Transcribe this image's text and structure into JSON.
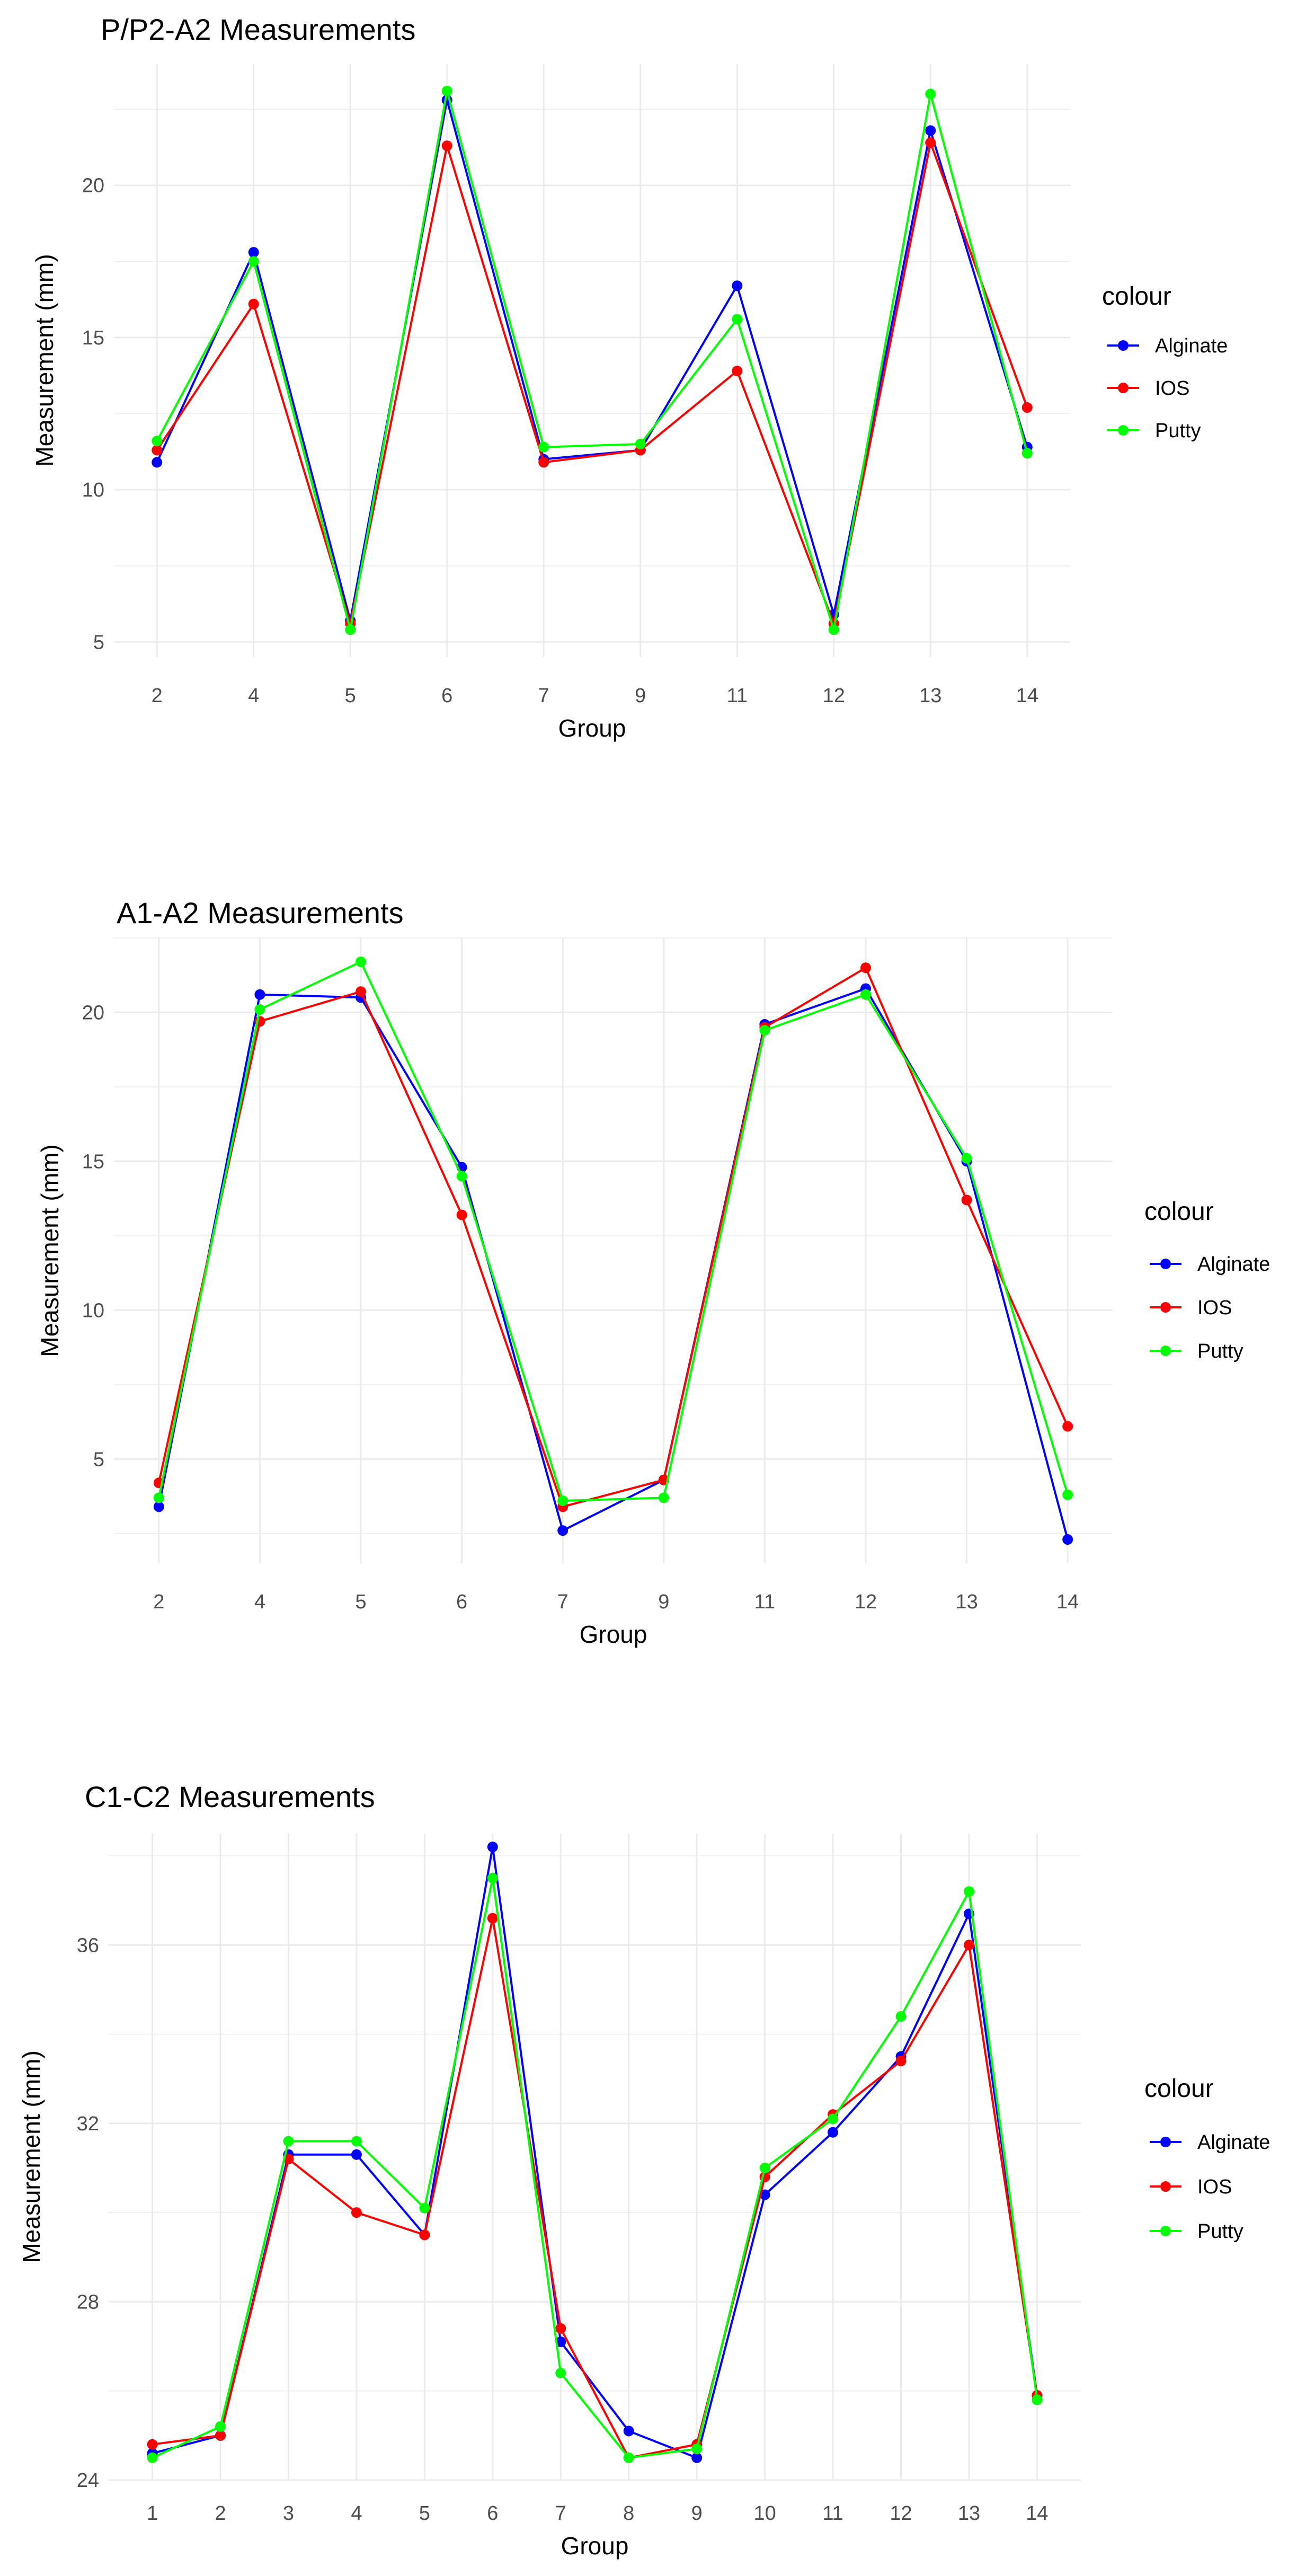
{
  "chart_data": [
    {
      "type": "line",
      "title": "P/P2-A2 Measurements",
      "xlabel": "Group",
      "ylabel": "Measurement (mm)",
      "categories": [
        "2",
        "4",
        "5",
        "6",
        "7",
        "9",
        "11",
        "12",
        "13",
        "14"
      ],
      "ylim": [
        4.5,
        24.0
      ],
      "yticks": [
        5,
        10,
        15,
        20
      ],
      "legend_title": "colour",
      "series": [
        {
          "name": "Alginate",
          "color": "#0000ff",
          "values": [
            10.9,
            17.8,
            5.7,
            22.8,
            11.0,
            11.3,
            16.7,
            5.9,
            21.8,
            11.4
          ]
        },
        {
          "name": "IOS",
          "color": "#ff0000",
          "values": [
            11.3,
            16.1,
            5.6,
            21.3,
            10.9,
            11.3,
            13.9,
            5.6,
            21.4,
            12.7
          ]
        },
        {
          "name": "Putty",
          "color": "#00ff00",
          "values": [
            11.6,
            17.5,
            5.4,
            23.1,
            11.4,
            11.5,
            15.6,
            5.4,
            23.0,
            11.2
          ]
        }
      ]
    },
    {
      "type": "line",
      "title": "A1-A2 Measurements",
      "xlabel": "Group",
      "ylabel": "Measurement (mm)",
      "categories": [
        "2",
        "4",
        "5",
        "6",
        "7",
        "9",
        "11",
        "12",
        "13",
        "14"
      ],
      "ylim": [
        1.5,
        22.5
      ],
      "yticks": [
        5,
        10,
        15,
        20
      ],
      "legend_title": "colour",
      "series": [
        {
          "name": "Alginate",
          "color": "#0000ff",
          "values": [
            3.4,
            20.6,
            20.5,
            14.8,
            2.6,
            4.3,
            19.6,
            20.8,
            15.0,
            2.3
          ]
        },
        {
          "name": "IOS",
          "color": "#ff0000",
          "values": [
            4.2,
            19.7,
            20.7,
            13.2,
            3.4,
            4.3,
            19.5,
            21.5,
            13.7,
            6.1
          ]
        },
        {
          "name": "Putty",
          "color": "#00ff00",
          "values": [
            3.7,
            20.1,
            21.7,
            14.5,
            3.6,
            3.7,
            19.4,
            20.6,
            15.1,
            3.8
          ]
        }
      ]
    },
    {
      "type": "line",
      "title": "C1-C2 Measurements",
      "xlabel": "Group",
      "ylabel": "Measurement (mm)",
      "categories": [
        "1",
        "2",
        "3",
        "4",
        "5",
        "6",
        "7",
        "8",
        "9",
        "10",
        "11",
        "12",
        "13",
        "14"
      ],
      "ylim": [
        24.0,
        38.5
      ],
      "yticks": [
        24,
        28,
        32,
        36
      ],
      "legend_title": "colour",
      "series": [
        {
          "name": "Alginate",
          "color": "#0000ff",
          "values": [
            24.6,
            25.0,
            31.3,
            31.3,
            29.5,
            38.2,
            27.1,
            25.1,
            24.5,
            30.4,
            31.8,
            33.5,
            36.7,
            25.9
          ]
        },
        {
          "name": "IOS",
          "color": "#ff0000",
          "values": [
            24.8,
            25.0,
            31.2,
            30.0,
            29.5,
            36.6,
            27.4,
            24.5,
            24.8,
            30.8,
            32.2,
            33.4,
            36.0,
            25.9
          ]
        },
        {
          "name": "Putty",
          "color": "#00ff00",
          "values": [
            24.5,
            25.2,
            31.6,
            31.6,
            30.1,
            37.5,
            26.4,
            24.5,
            24.7,
            31.0,
            32.1,
            34.4,
            37.2,
            25.8
          ]
        }
      ]
    }
  ]
}
